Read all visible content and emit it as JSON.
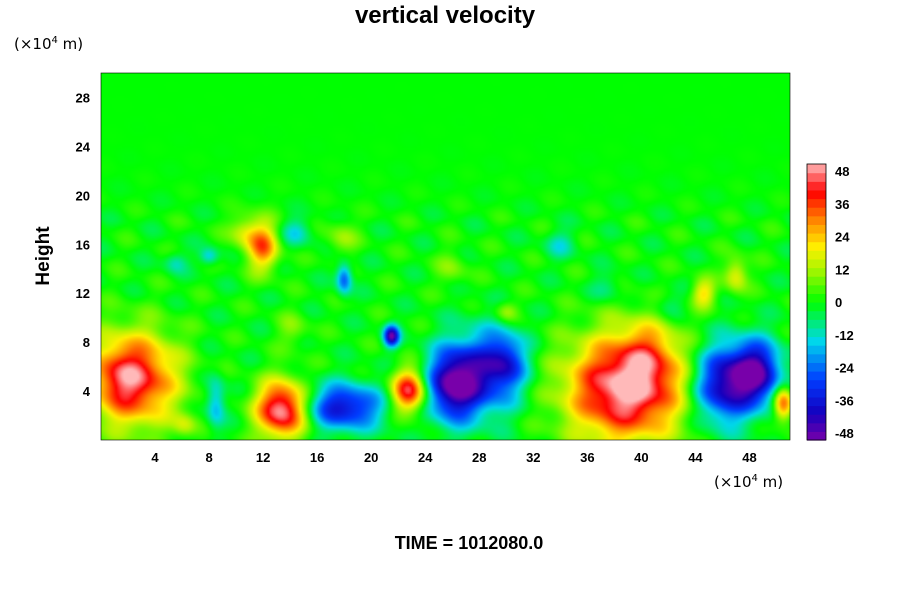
{
  "chart_data": {
    "type": "heatmap",
    "title": "vertical velocity",
    "ylabel": "Height",
    "yunit": {
      "prefix": "(×10",
      "sup": "4",
      "suffix": " m)"
    },
    "xunit": {
      "prefix": "(×10",
      "sup": "4",
      "suffix": " m)"
    },
    "xlim": [
      0,
      51
    ],
    "ylim": [
      0,
      30
    ],
    "xticks": [
      4,
      8,
      12,
      16,
      20,
      24,
      28,
      32,
      36,
      40,
      44,
      48
    ],
    "yticks": [
      4,
      8,
      12,
      16,
      20,
      24,
      28
    ],
    "colorbar": {
      "ticks": [
        48,
        36,
        24,
        12,
        0,
        -12,
        -24,
        -36,
        -48
      ],
      "min": -48,
      "max": 48
    },
    "features": [
      {
        "x": 2.5,
        "y": 5,
        "sx": 2.2,
        "sy": 2.6,
        "v": 42
      },
      {
        "x": 1.0,
        "y": 5,
        "sx": 1.2,
        "sy": 2.0,
        "v": 8
      },
      {
        "x": 13.4,
        "y": 2.5,
        "sx": 1.3,
        "sy": 1.6,
        "v": 50
      },
      {
        "x": 18.0,
        "y": 2.7,
        "sx": 2.0,
        "sy": 1.3,
        "v": -36
      },
      {
        "x": 22.8,
        "y": 4.0,
        "sx": 0.9,
        "sy": 1.2,
        "v": 42
      },
      {
        "x": 26.0,
        "y": 4.5,
        "sx": 1.3,
        "sy": 2.0,
        "v": -44
      },
      {
        "x": 28.5,
        "y": 5.5,
        "sx": 1.8,
        "sy": 2.4,
        "v": -30
      },
      {
        "x": 30.0,
        "y": 6.5,
        "sx": 1.0,
        "sy": 1.5,
        "v": -20
      },
      {
        "x": 38.8,
        "y": 4.2,
        "sx": 3.0,
        "sy": 3.0,
        "v": 50
      },
      {
        "x": 40.5,
        "y": 7.0,
        "sx": 1.5,
        "sy": 2.0,
        "v": 14
      },
      {
        "x": 46.0,
        "y": 4.5,
        "sx": 1.5,
        "sy": 2.2,
        "v": -40
      },
      {
        "x": 48.5,
        "y": 5.5,
        "sx": 1.3,
        "sy": 1.8,
        "v": -44
      },
      {
        "x": 50.5,
        "y": 3.0,
        "sx": 0.5,
        "sy": 1.0,
        "v": 35
      },
      {
        "x": 12.0,
        "y": 15.8,
        "sx": 0.8,
        "sy": 1.4,
        "v": 30
      },
      {
        "x": 10.6,
        "y": 17.0,
        "sx": 0.8,
        "sy": 1.0,
        "v": 14
      },
      {
        "x": 14.5,
        "y": 17.0,
        "sx": 0.8,
        "sy": 0.8,
        "v": -12
      },
      {
        "x": 17.8,
        "y": 16.5,
        "sx": 0.8,
        "sy": 1.0,
        "v": 10
      },
      {
        "x": 18.0,
        "y": 13.2,
        "sx": 0.4,
        "sy": 0.9,
        "v": -25
      },
      {
        "x": 21.5,
        "y": 8.5,
        "sx": 0.4,
        "sy": 0.6,
        "v": -45
      },
      {
        "x": 14.2,
        "y": 9.0,
        "sx": 0.8,
        "sy": 1.0,
        "v": 8
      },
      {
        "x": 30.0,
        "y": 10.5,
        "sx": 0.6,
        "sy": 0.6,
        "v": 12
      },
      {
        "x": 47.0,
        "y": 13.5,
        "sx": 0.6,
        "sy": 1.0,
        "v": 18
      },
      {
        "x": 44.6,
        "y": 12.0,
        "sx": 0.6,
        "sy": 0.8,
        "v": 20
      },
      {
        "x": 42.0,
        "y": 11.0,
        "sx": 0.8,
        "sy": 0.8,
        "v": -8
      },
      {
        "x": 5.5,
        "y": 14.5,
        "sx": 0.6,
        "sy": 0.6,
        "v": -10
      },
      {
        "x": 8.0,
        "y": 15.0,
        "sx": 0.5,
        "sy": 0.5,
        "v": -15
      },
      {
        "x": 34.0,
        "y": 16.0,
        "sx": 0.8,
        "sy": 0.8,
        "v": -10
      },
      {
        "x": 26.0,
        "y": 14.0,
        "sx": 0.8,
        "sy": 1.0,
        "v": 8
      },
      {
        "x": 37.5,
        "y": 12.5,
        "sx": 0.8,
        "sy": 0.8,
        "v": -8
      },
      {
        "x": 8.5,
        "y": 3.0,
        "sx": 0.5,
        "sy": 1.5,
        "v": -18
      },
      {
        "x": 6.2,
        "y": 1.2,
        "sx": 0.6,
        "sy": 0.7,
        "v": 12
      }
    ]
  },
  "footer": {
    "time_label": "TIME = 1012080.0"
  }
}
